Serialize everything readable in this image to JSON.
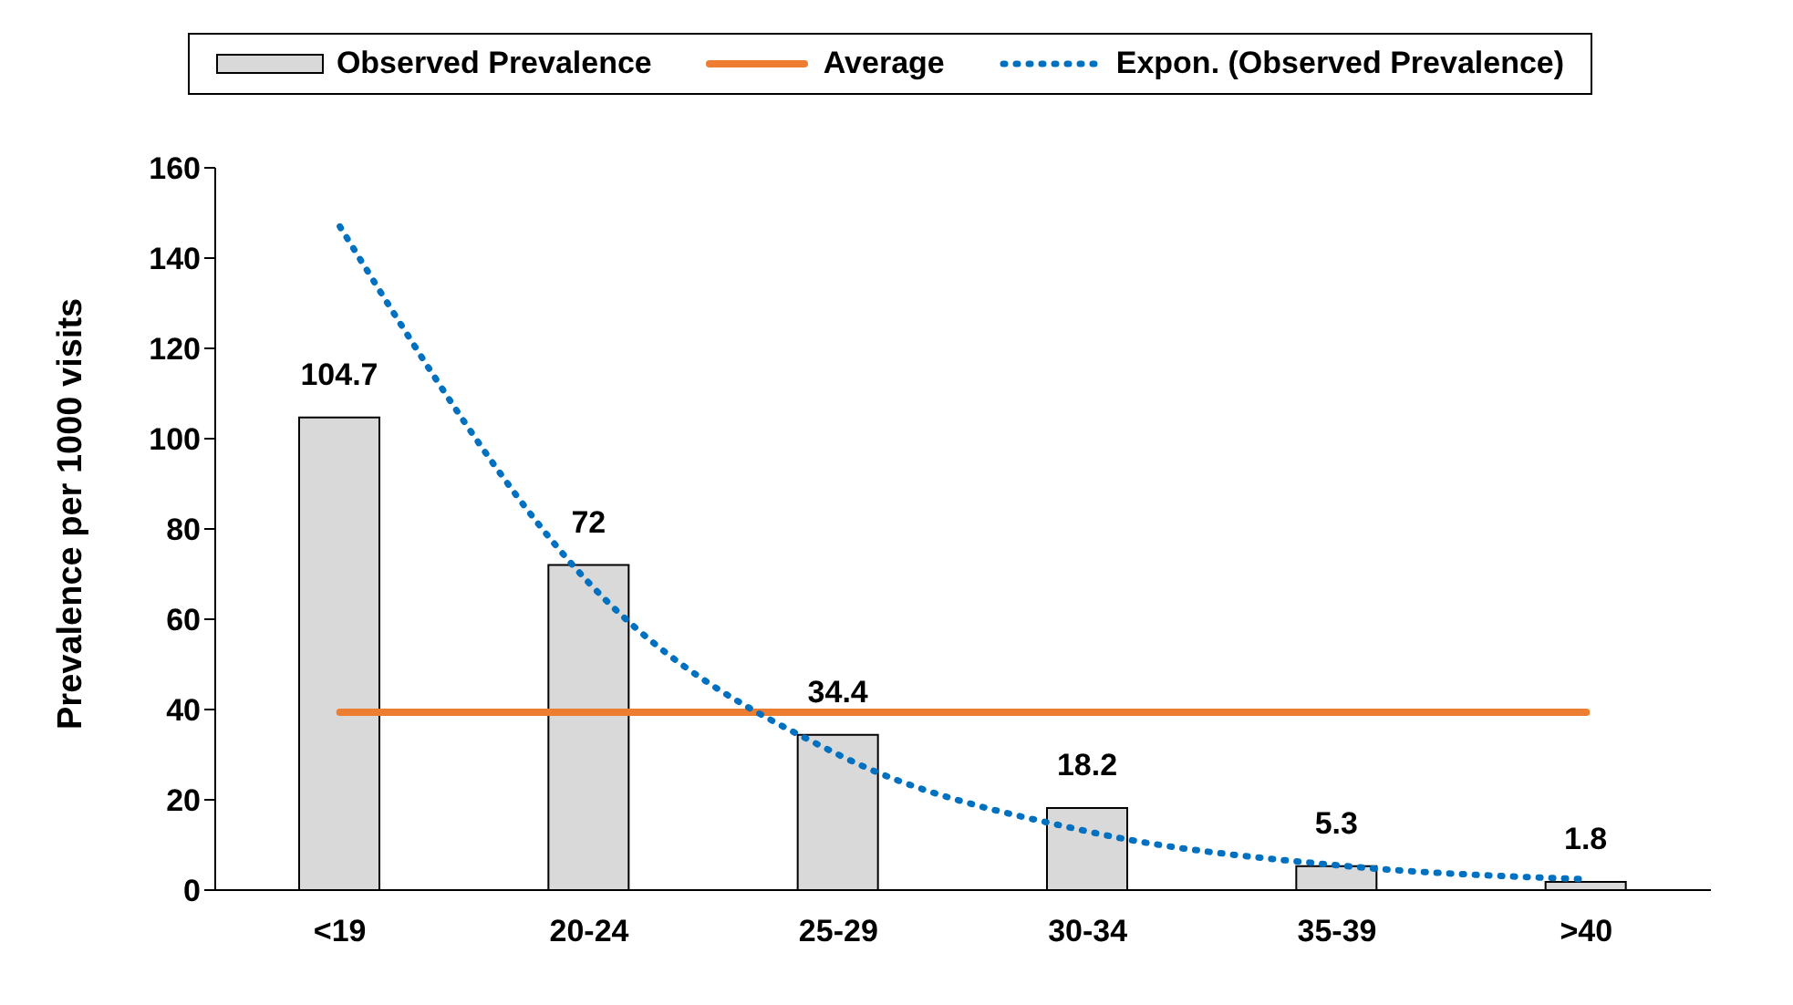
{
  "chart_data": {
    "type": "bar",
    "categories": [
      "<19",
      "20-24",
      "25-29",
      "30-34",
      "35-39",
      ">40"
    ],
    "ylabel": "Prevalence per 1000 visits",
    "ylim": [
      0,
      160
    ],
    "yticks": [
      0,
      20,
      40,
      60,
      80,
      100,
      120,
      140,
      160
    ],
    "grid": false,
    "legend": "top",
    "series": [
      {
        "name": "Observed Prevalence",
        "color": "#d9d9d9",
        "values": [
          104.7,
          72,
          34.4,
          18.2,
          5.3,
          1.8
        ],
        "value_labels": [
          "104.7",
          "72",
          "34.4",
          "18.2",
          "5.3",
          "1.8"
        ]
      },
      {
        "name": "Average",
        "type": "line",
        "color": "#ed7d31",
        "line_style": "solid",
        "values": [
          39.4,
          39.4,
          39.4,
          39.4,
          39.4,
          39.4
        ]
      },
      {
        "name": "Expon. (Observed Prevalence)",
        "type": "line",
        "color": "#0070c0",
        "line_style": "dotted",
        "values": [
          147,
          68,
          30,
          13,
          5.5,
          2.4
        ]
      }
    ]
  }
}
